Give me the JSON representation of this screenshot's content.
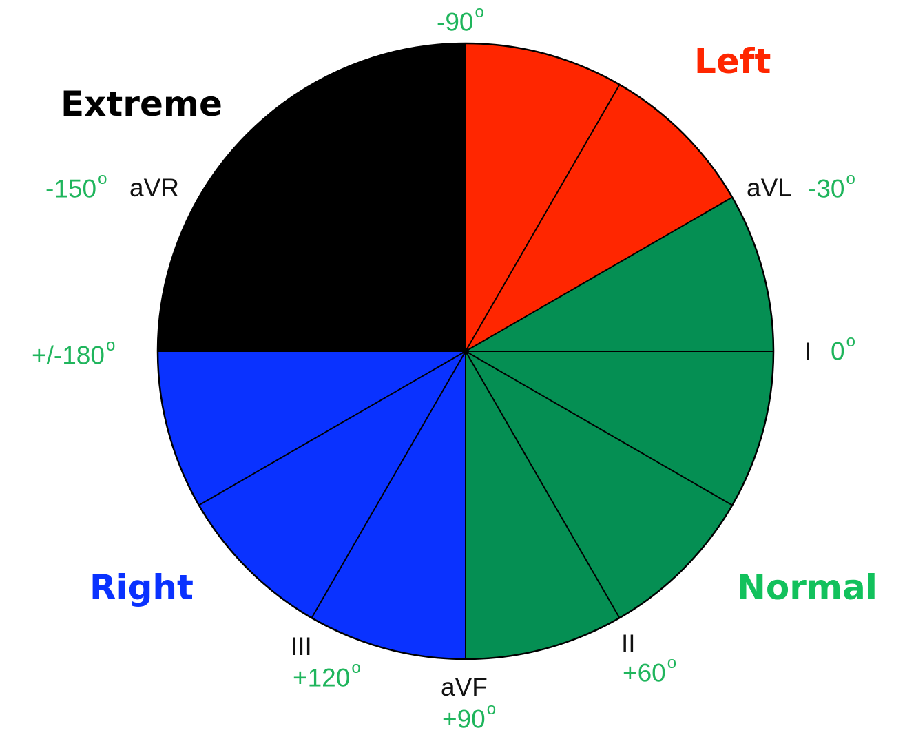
{
  "zones": {
    "extreme": {
      "label": "Extreme",
      "color": "#000000"
    },
    "left": {
      "label": "Left",
      "color": "#ff2600"
    },
    "normal": {
      "label": "Normal",
      "color": "#058f53"
    },
    "right": {
      "label": "Right",
      "color": "#0a32ff"
    }
  },
  "label_colors": {
    "zone_normal_text": "#12c15c",
    "degree_text": "#1fb55c",
    "lead_text": "#111111"
  },
  "sectors": [
    {
      "from_deg": -90,
      "to_deg": -30,
      "zone": "left"
    },
    {
      "from_deg": -30,
      "to_deg": 90,
      "zone": "normal"
    },
    {
      "from_deg": 90,
      "to_deg": 180,
      "zone": "right"
    },
    {
      "from_deg": -180,
      "to_deg": -90,
      "zone": "extreme"
    }
  ],
  "divider_step_deg": 30,
  "leads": {
    "aVR": "aVR",
    "aVL": "aVL",
    "I": "I",
    "II": "II",
    "III": "III",
    "aVF": "aVF"
  },
  "degrees": {
    "minus90": "-90",
    "minus30": "-30",
    "minus150": "-150",
    "zero": "0",
    "plusminus180": "+/-180",
    "plus60": "+60",
    "plus120": "+120",
    "plus90": "+90"
  },
  "degree_symbol": "o"
}
